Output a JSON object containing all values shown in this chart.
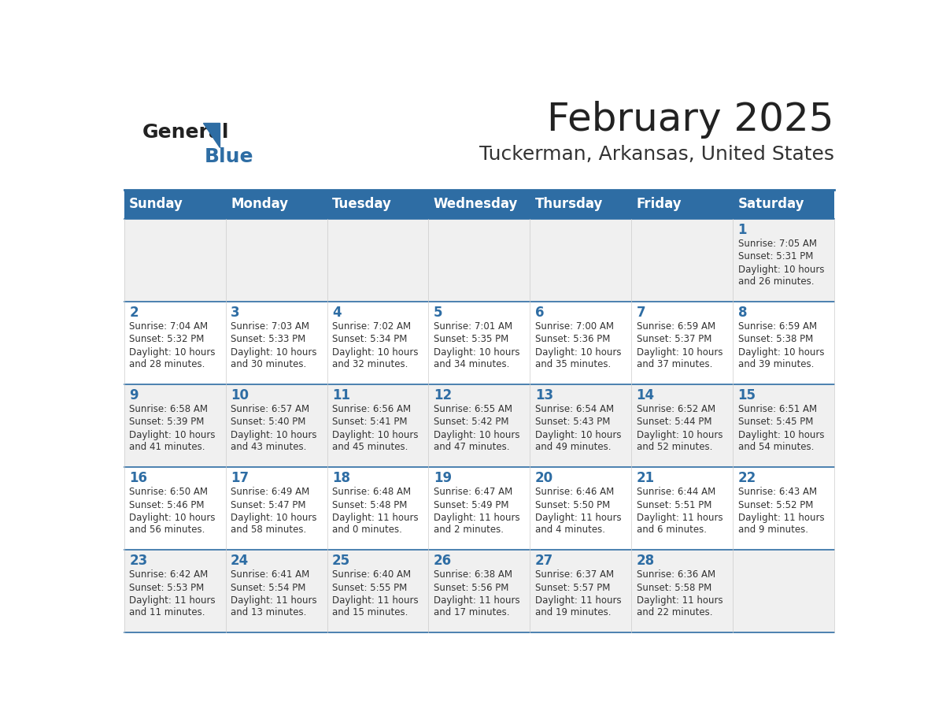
{
  "title": "February 2025",
  "subtitle": "Tuckerman, Arkansas, United States",
  "header_bg": "#2E6DA4",
  "header_text_color": "#FFFFFF",
  "cell_bg_odd": "#F0F0F0",
  "cell_bg_even": "#FFFFFF",
  "day_headers": [
    "Sunday",
    "Monday",
    "Tuesday",
    "Wednesday",
    "Thursday",
    "Friday",
    "Saturday"
  ],
  "title_color": "#222222",
  "subtitle_color": "#333333",
  "day_num_color": "#2E6DA4",
  "cell_text_color": "#333333",
  "divider_color": "#2E6DA4",
  "logo_general_color": "#222222",
  "logo_blue_color": "#2E6DA4",
  "calendar_data": [
    [
      {
        "day": null,
        "sunrise": null,
        "sunset": null,
        "daylight": null
      },
      {
        "day": null,
        "sunrise": null,
        "sunset": null,
        "daylight": null
      },
      {
        "day": null,
        "sunrise": null,
        "sunset": null,
        "daylight": null
      },
      {
        "day": null,
        "sunrise": null,
        "sunset": null,
        "daylight": null
      },
      {
        "day": null,
        "sunrise": null,
        "sunset": null,
        "daylight": null
      },
      {
        "day": null,
        "sunrise": null,
        "sunset": null,
        "daylight": null
      },
      {
        "day": 1,
        "sunrise": "7:05 AM",
        "sunset": "5:31 PM",
        "daylight": "10 hours\nand 26 minutes."
      }
    ],
    [
      {
        "day": 2,
        "sunrise": "7:04 AM",
        "sunset": "5:32 PM",
        "daylight": "10 hours\nand 28 minutes."
      },
      {
        "day": 3,
        "sunrise": "7:03 AM",
        "sunset": "5:33 PM",
        "daylight": "10 hours\nand 30 minutes."
      },
      {
        "day": 4,
        "sunrise": "7:02 AM",
        "sunset": "5:34 PM",
        "daylight": "10 hours\nand 32 minutes."
      },
      {
        "day": 5,
        "sunrise": "7:01 AM",
        "sunset": "5:35 PM",
        "daylight": "10 hours\nand 34 minutes."
      },
      {
        "day": 6,
        "sunrise": "7:00 AM",
        "sunset": "5:36 PM",
        "daylight": "10 hours\nand 35 minutes."
      },
      {
        "day": 7,
        "sunrise": "6:59 AM",
        "sunset": "5:37 PM",
        "daylight": "10 hours\nand 37 minutes."
      },
      {
        "day": 8,
        "sunrise": "6:59 AM",
        "sunset": "5:38 PM",
        "daylight": "10 hours\nand 39 minutes."
      }
    ],
    [
      {
        "day": 9,
        "sunrise": "6:58 AM",
        "sunset": "5:39 PM",
        "daylight": "10 hours\nand 41 minutes."
      },
      {
        "day": 10,
        "sunrise": "6:57 AM",
        "sunset": "5:40 PM",
        "daylight": "10 hours\nand 43 minutes."
      },
      {
        "day": 11,
        "sunrise": "6:56 AM",
        "sunset": "5:41 PM",
        "daylight": "10 hours\nand 45 minutes."
      },
      {
        "day": 12,
        "sunrise": "6:55 AM",
        "sunset": "5:42 PM",
        "daylight": "10 hours\nand 47 minutes."
      },
      {
        "day": 13,
        "sunrise": "6:54 AM",
        "sunset": "5:43 PM",
        "daylight": "10 hours\nand 49 minutes."
      },
      {
        "day": 14,
        "sunrise": "6:52 AM",
        "sunset": "5:44 PM",
        "daylight": "10 hours\nand 52 minutes."
      },
      {
        "day": 15,
        "sunrise": "6:51 AM",
        "sunset": "5:45 PM",
        "daylight": "10 hours\nand 54 minutes."
      }
    ],
    [
      {
        "day": 16,
        "sunrise": "6:50 AM",
        "sunset": "5:46 PM",
        "daylight": "10 hours\nand 56 minutes."
      },
      {
        "day": 17,
        "sunrise": "6:49 AM",
        "sunset": "5:47 PM",
        "daylight": "10 hours\nand 58 minutes."
      },
      {
        "day": 18,
        "sunrise": "6:48 AM",
        "sunset": "5:48 PM",
        "daylight": "11 hours\nand 0 minutes."
      },
      {
        "day": 19,
        "sunrise": "6:47 AM",
        "sunset": "5:49 PM",
        "daylight": "11 hours\nand 2 minutes."
      },
      {
        "day": 20,
        "sunrise": "6:46 AM",
        "sunset": "5:50 PM",
        "daylight": "11 hours\nand 4 minutes."
      },
      {
        "day": 21,
        "sunrise": "6:44 AM",
        "sunset": "5:51 PM",
        "daylight": "11 hours\nand 6 minutes."
      },
      {
        "day": 22,
        "sunrise": "6:43 AM",
        "sunset": "5:52 PM",
        "daylight": "11 hours\nand 9 minutes."
      }
    ],
    [
      {
        "day": 23,
        "sunrise": "6:42 AM",
        "sunset": "5:53 PM",
        "daylight": "11 hours\nand 11 minutes."
      },
      {
        "day": 24,
        "sunrise": "6:41 AM",
        "sunset": "5:54 PM",
        "daylight": "11 hours\nand 13 minutes."
      },
      {
        "day": 25,
        "sunrise": "6:40 AM",
        "sunset": "5:55 PM",
        "daylight": "11 hours\nand 15 minutes."
      },
      {
        "day": 26,
        "sunrise": "6:38 AM",
        "sunset": "5:56 PM",
        "daylight": "11 hours\nand 17 minutes."
      },
      {
        "day": 27,
        "sunrise": "6:37 AM",
        "sunset": "5:57 PM",
        "daylight": "11 hours\nand 19 minutes."
      },
      {
        "day": 28,
        "sunrise": "6:36 AM",
        "sunset": "5:58 PM",
        "daylight": "11 hours\nand 22 minutes."
      },
      {
        "day": null,
        "sunrise": null,
        "sunset": null,
        "daylight": null
      }
    ]
  ]
}
